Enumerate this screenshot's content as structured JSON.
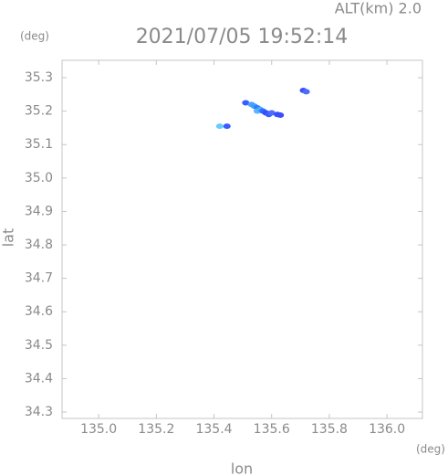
{
  "chart_data": {
    "type": "scatter",
    "title": "2021/07/05 19:52:14",
    "subtitle": "ALT(km) 2.0",
    "x_label": "lon",
    "y_label": "lat",
    "x_unit": "(deg)",
    "y_unit": "(deg)",
    "x": [
      135.51,
      135.53,
      135.54,
      135.55,
      135.55,
      135.56,
      135.57,
      135.58,
      135.59,
      135.6,
      135.62,
      135.63,
      135.71,
      135.72,
      135.42,
      135.445
    ],
    "values": [
      35.225,
      35.22,
      35.215,
      35.21,
      35.2,
      35.205,
      35.2,
      35.195,
      35.19,
      35.195,
      35.19,
      35.188,
      35.262,
      35.258,
      35.155,
      35.155
    ],
    "colors": [
      "#3a5cff",
      "#4fa0ff",
      "#3aa0ff",
      "#2f7bff",
      "#5fb8ff",
      "#4aa8ff",
      "#2f6bff",
      "#3050ff",
      "#3a5cff",
      "#4a6cff",
      "#3a4cff",
      "#3a4cff",
      "#3a4cff",
      "#4a6cff",
      "#66ccff",
      "#3a5cff"
    ],
    "xlim": [
      134.873,
      136.123
    ],
    "ylim": [
      34.281,
      35.352
    ],
    "xticks": [
      {
        "value": 135,
        "label": "135.0"
      },
      135.2,
      135.4,
      135.6,
      135.8,
      {
        "value": 136,
        "label": "136.0"
      }
    ],
    "yticks": [
      34.3,
      34.4,
      34.5,
      34.6,
      34.7,
      34.8,
      34.9,
      {
        "value": 35,
        "label": "35.0"
      },
      35.1,
      35.2,
      35.3
    ]
  }
}
